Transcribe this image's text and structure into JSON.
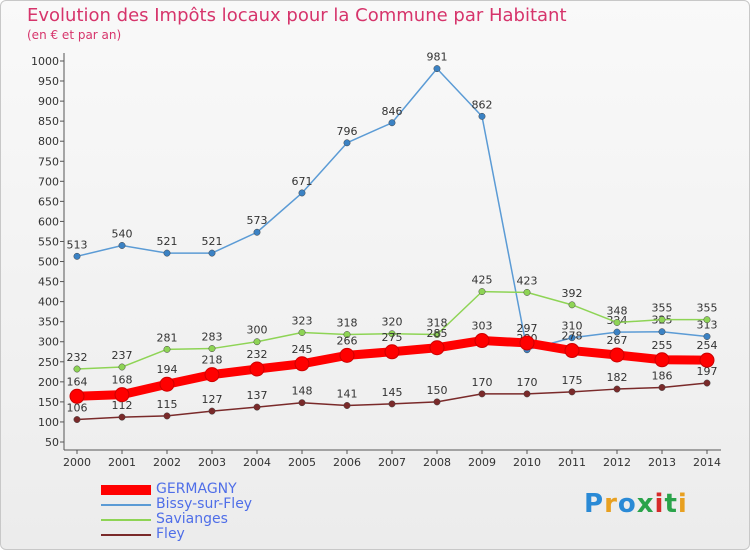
{
  "title": "Evolution des Impôts locaux pour la Commune par Habitant",
  "subtitle": "(en € et par an)",
  "logo": {
    "text": "Proxiti",
    "colors": [
      "#2a8ad6",
      "#e8a020",
      "#2a8ad6",
      "#2aa34a",
      "#d62a2a",
      "#2aa34a",
      "#e8a020"
    ]
  },
  "chart_data": {
    "type": "line",
    "title": "Evolution des Impôts locaux pour la Commune par Habitant",
    "subtitle": "(en € et par an)",
    "x": [
      "2000",
      "2001",
      "2002",
      "2003",
      "2004",
      "2005",
      "2006",
      "2007",
      "2008",
      "2009",
      "2010",
      "2011",
      "2012",
      "2013",
      "2014"
    ],
    "yticks": [
      50,
      100,
      150,
      200,
      250,
      300,
      350,
      400,
      450,
      500,
      550,
      600,
      650,
      700,
      750,
      800,
      850,
      900,
      950,
      1000
    ],
    "ylim": [
      50,
      1000
    ],
    "grid": false,
    "series": [
      {
        "name": "Bissy-sur-Fley",
        "color": "#5b9bd5",
        "point_color": "#3b82c4",
        "values": [
          513,
          540,
          521,
          521,
          573,
          671,
          796,
          846,
          981,
          862,
          280,
          310,
          324,
          325,
          313
        ],
        "labels": [
          "513",
          "540",
          "521",
          "521",
          "573",
          "671",
          "796",
          "846",
          "981",
          "862",
          "280",
          "310",
          "324",
          "325",
          "313"
        ]
      },
      {
        "name": "Savianges",
        "color": "#8ed455",
        "point_color": "#8ed455",
        "values": [
          232,
          237,
          281,
          283,
          300,
          323,
          318,
          320,
          318,
          425,
          423,
          392,
          348,
          355,
          355
        ],
        "labels": [
          "232",
          "237",
          "281",
          "283",
          "300",
          "323",
          "318",
          "320",
          "318",
          "425",
          "423",
          "392",
          "348",
          "355",
          "355"
        ]
      },
      {
        "name": "Fley",
        "color": "#7a2a2a",
        "point_color": "#7a2a2a",
        "values": [
          106,
          112,
          115,
          127,
          137,
          148,
          141,
          145,
          150,
          170,
          170,
          175,
          182,
          186,
          197
        ],
        "labels": [
          "106",
          "112",
          "115",
          "127",
          "137",
          "148",
          "141",
          "145",
          "150",
          "170",
          "170",
          "175",
          "182",
          "186",
          "197"
        ]
      },
      {
        "name": "GERMAGNY",
        "color": "#ff0000",
        "point_color": "#ff0000",
        "values": [
          164,
          168,
          194,
          218,
          232,
          245,
          266,
          275,
          285,
          303,
          297,
          278,
          267,
          255,
          254
        ],
        "labels": [
          "164",
          "168",
          "194",
          "218",
          "232",
          "245",
          "266",
          "275",
          "285",
          "303",
          "297",
          "278",
          "267",
          "255",
          "254"
        ]
      }
    ],
    "legend": [
      {
        "name": "GERMAGNY",
        "color": "#ff0000"
      },
      {
        "name": "Bissy-sur-Fley",
        "color": "#5b9bd5"
      },
      {
        "name": "Savianges",
        "color": "#8ed455"
      },
      {
        "name": "Fley",
        "color": "#7a2a2a"
      }
    ]
  }
}
